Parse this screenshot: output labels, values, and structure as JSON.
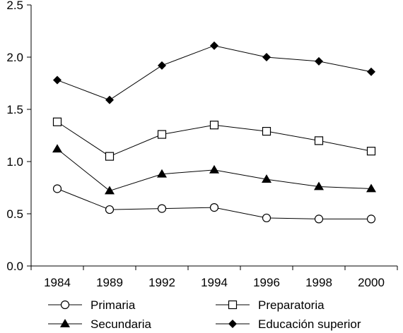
{
  "chart_data": {
    "type": "line",
    "title": "",
    "xlabel": "",
    "ylabel": "",
    "categories": [
      "1984",
      "1989",
      "1992",
      "1994",
      "1996",
      "1998",
      "2000"
    ],
    "ylim": [
      0,
      2.5
    ],
    "yticks": [
      "0.0",
      "0.5",
      "1.0",
      "1.5",
      "2.0",
      "2.5"
    ],
    "grid": false,
    "legend_position": "bottom",
    "series": [
      {
        "name": "Primaria",
        "marker": "circle-open",
        "values": [
          0.74,
          0.54,
          0.55,
          0.56,
          0.46,
          0.45,
          0.45
        ]
      },
      {
        "name": "Preparatoria",
        "marker": "square-open",
        "values": [
          1.38,
          1.05,
          1.26,
          1.35,
          1.29,
          1.2,
          1.1
        ]
      },
      {
        "name": "Secundaria",
        "marker": "triangle-filled",
        "values": [
          1.12,
          0.72,
          0.88,
          0.92,
          0.83,
          0.76,
          0.74
        ]
      },
      {
        "name": "Educación superior",
        "marker": "diamond-filled",
        "values": [
          1.78,
          1.59,
          1.92,
          2.11,
          2.0,
          1.96,
          1.86
        ]
      }
    ]
  }
}
